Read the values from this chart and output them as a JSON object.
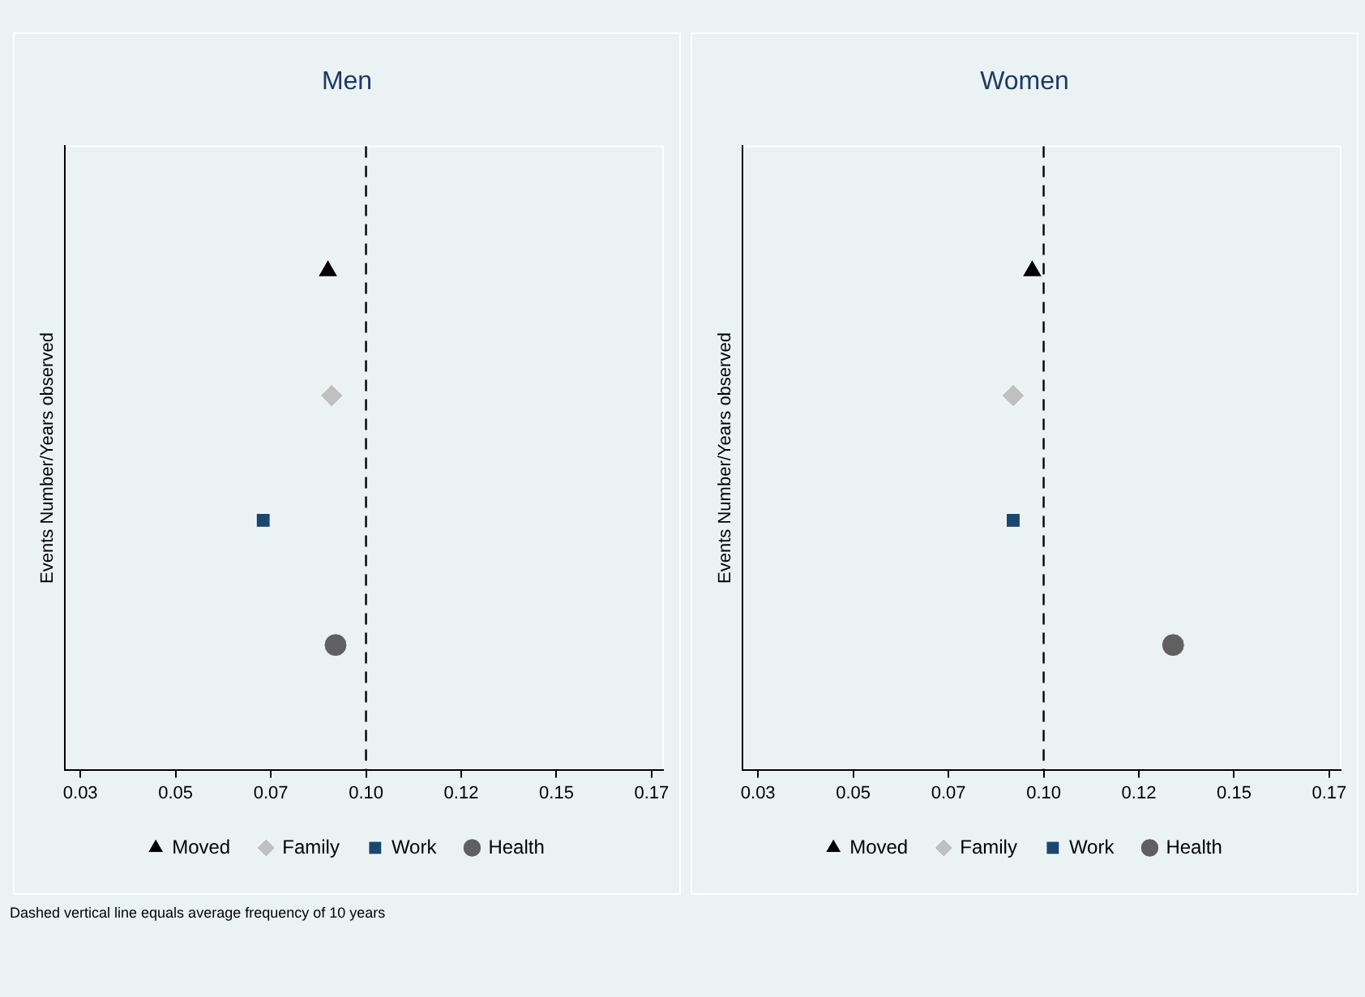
{
  "chart_data": [
    {
      "type": "scatter",
      "title": "Men",
      "ylabel": "Events Number/Years observed",
      "orientation": "horizontal",
      "categories": [
        null,
        null,
        null,
        null
      ],
      "xlim": [
        0.021,
        0.178
      ],
      "xticks": [
        {
          "value": 0.025,
          "label": "0.03"
        },
        {
          "value": 0.05,
          "label": "0.05"
        },
        {
          "value": 0.075,
          "label": "0.07"
        },
        {
          "value": 0.1,
          "label": "0.10"
        },
        {
          "value": 0.125,
          "label": "0.12"
        },
        {
          "value": 0.15,
          "label": "0.15"
        },
        {
          "value": 0.175,
          "label": "0.17"
        }
      ],
      "grid": false,
      "legend": "bottom",
      "series": [
        {
          "name": "Moved",
          "color": "#000000",
          "marker": "triangle",
          "values": [
            0.09,
            null,
            null,
            null
          ]
        },
        {
          "name": "Family",
          "color": "#c0c0c0",
          "marker": "diamond",
          "values": [
            null,
            0.091,
            null,
            null
          ]
        },
        {
          "name": "Work",
          "color": "#1a476f",
          "marker": "square",
          "values": [
            null,
            null,
            0.073,
            null
          ]
        },
        {
          "name": "Health",
          "color": "#606060",
          "marker": "circle",
          "values": [
            null,
            null,
            null,
            0.092
          ]
        }
      ],
      "ref_lines": [
        {
          "axis": "x",
          "value": 0.1,
          "color": "#000000",
          "line_style": "dashed"
        }
      ],
      "annotations": [
        "Dashed vertical line equals average frequency of 10 years"
      ]
    },
    {
      "type": "scatter",
      "title": "Women",
      "ylabel": "Events Number/Years observed",
      "orientation": "horizontal",
      "categories": [
        null,
        null,
        null,
        null
      ],
      "xlim": [
        0.021,
        0.178
      ],
      "xticks": [
        {
          "value": 0.025,
          "label": "0.03"
        },
        {
          "value": 0.05,
          "label": "0.05"
        },
        {
          "value": 0.075,
          "label": "0.07"
        },
        {
          "value": 0.1,
          "label": "0.10"
        },
        {
          "value": 0.125,
          "label": "0.12"
        },
        {
          "value": 0.15,
          "label": "0.15"
        },
        {
          "value": 0.175,
          "label": "0.17"
        }
      ],
      "grid": false,
      "legend": "bottom",
      "series": [
        {
          "name": "Moved",
          "color": "#000000",
          "marker": "triangle",
          "values": [
            0.097,
            null,
            null,
            null
          ]
        },
        {
          "name": "Family",
          "color": "#c0c0c0",
          "marker": "diamond",
          "values": [
            null,
            0.092,
            null,
            null
          ]
        },
        {
          "name": "Work",
          "color": "#1a476f",
          "marker": "square",
          "values": [
            null,
            null,
            0.092,
            null
          ]
        },
        {
          "name": "Health",
          "color": "#606060",
          "marker": "circle",
          "values": [
            null,
            null,
            null,
            0.134
          ]
        }
      ],
      "ref_lines": [
        {
          "axis": "x",
          "value": 0.1,
          "color": "#000000",
          "line_style": "dashed"
        }
      ]
    }
  ]
}
